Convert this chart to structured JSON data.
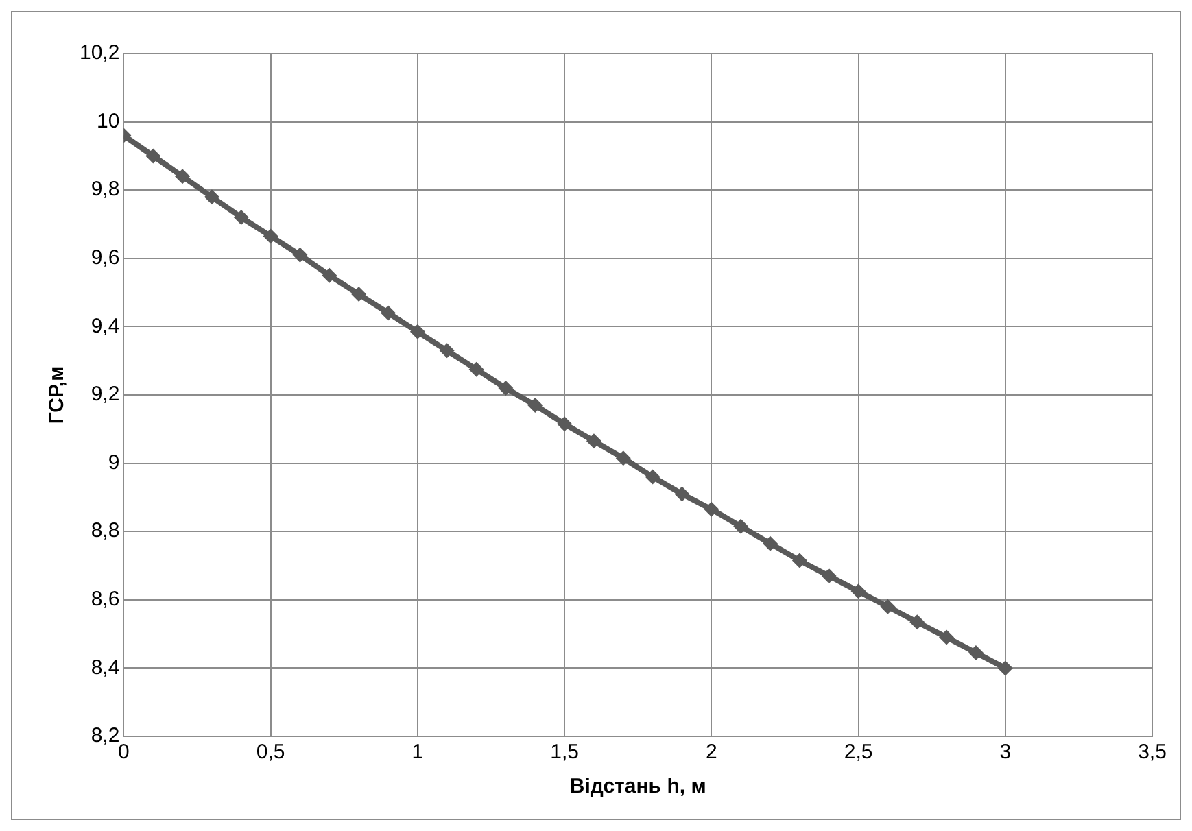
{
  "chart_data": {
    "type": "line",
    "xlabel": "Відстань h, м",
    "ylabel": "ГСР,м",
    "x": [
      0,
      0.1,
      0.2,
      0.3,
      0.4,
      0.5,
      0.6,
      0.7,
      0.8,
      0.9,
      1,
      1.1,
      1.2,
      1.3,
      1.4,
      1.5,
      1.6,
      1.7,
      1.8,
      1.9,
      2,
      2.1,
      2.2,
      2.3,
      2.4,
      2.5,
      2.6,
      2.7,
      2.8,
      2.9,
      3
    ],
    "series": [
      {
        "color": "#5a5a5a",
        "values": [
          9.96,
          9.9,
          9.84,
          9.78,
          9.72,
          9.665,
          9.61,
          9.55,
          9.495,
          9.44,
          9.385,
          9.33,
          9.275,
          9.22,
          9.17,
          9.115,
          9.065,
          9.015,
          8.96,
          8.91,
          8.865,
          8.815,
          8.765,
          8.715,
          8.67,
          8.625,
          8.58,
          8.535,
          8.49,
          8.445,
          8.4
        ]
      }
    ],
    "xlim": [
      0,
      3.5
    ],
    "xticks": [
      0,
      {
        "value": 0.5,
        "label": "0,5"
      },
      1,
      {
        "value": 1.5,
        "label": "1,5"
      },
      2,
      {
        "value": 2.5,
        "label": "2,5"
      },
      3,
      {
        "value": 3.5,
        "label": "3,5"
      }
    ],
    "ylim": [
      8.2,
      10.2
    ],
    "yticks": [
      {
        "value": 8.2,
        "label": "8,2"
      },
      {
        "value": 8.4,
        "label": "8,4"
      },
      {
        "value": 8.6,
        "label": "8,6"
      },
      {
        "value": 8.8,
        "label": "8,8"
      },
      9,
      {
        "value": 9.2,
        "label": "9,2"
      },
      {
        "value": 9.4,
        "label": "9,4"
      },
      {
        "value": 9.6,
        "label": "9,6"
      },
      {
        "value": 9.8,
        "label": "9,8"
      },
      10,
      {
        "value": 10.2,
        "label": "10,2"
      }
    ],
    "grid": true,
    "legend": false,
    "marker": "diamond",
    "line_style": "solid"
  }
}
